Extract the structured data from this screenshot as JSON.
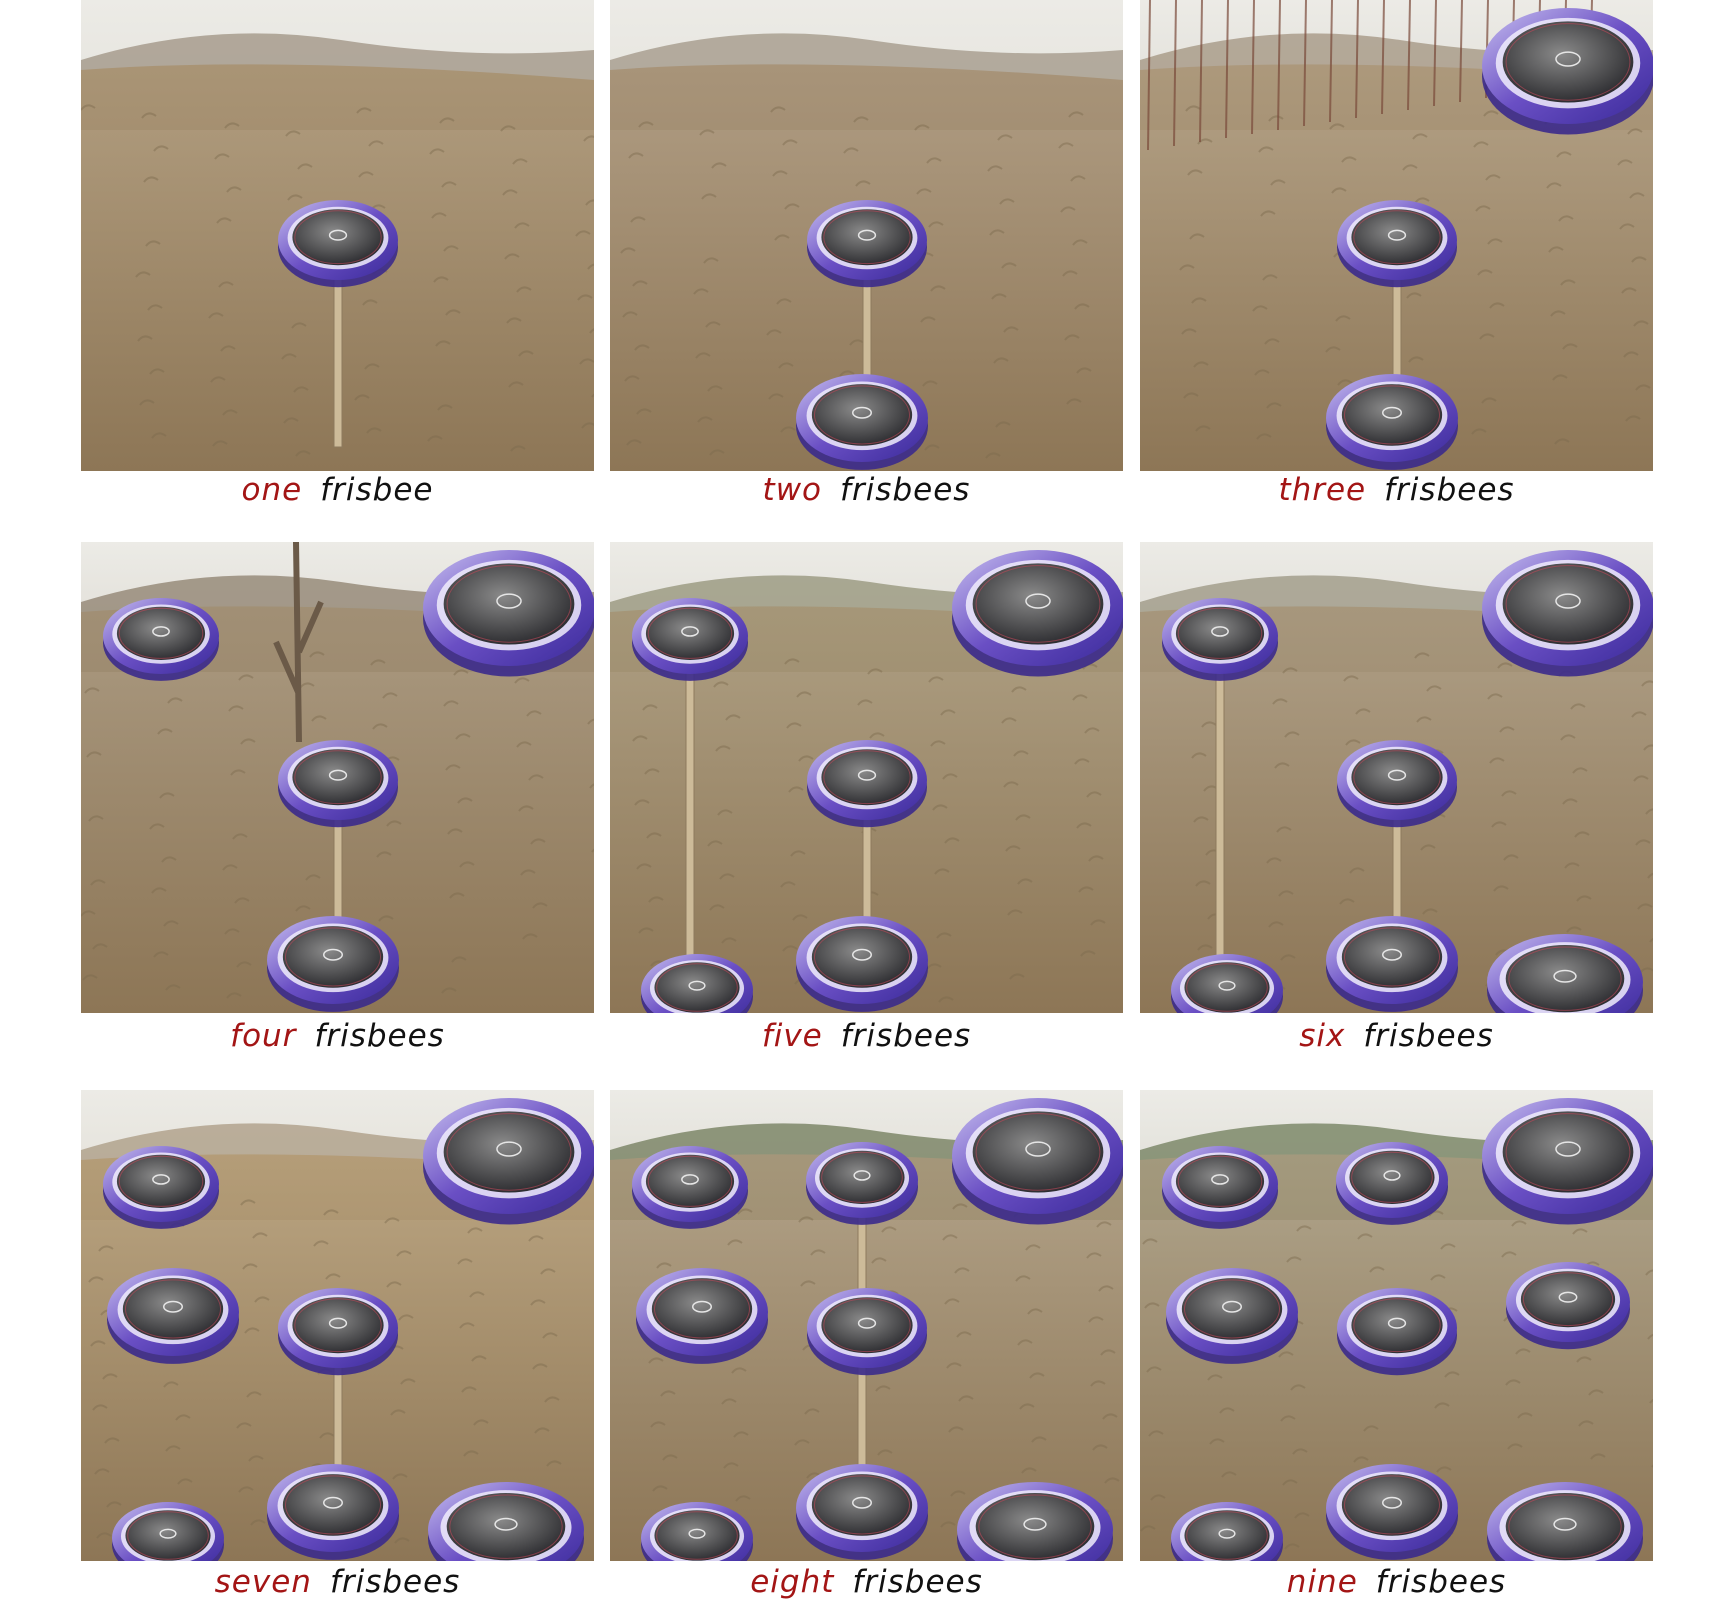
{
  "colors": {
    "number_word": "#a31515",
    "object_word": "#111111"
  },
  "panels": [
    {
      "number": "one",
      "object": "frisbees",
      "object_singular": "frisbee",
      "frisbee_count": 1
    },
    {
      "number": "two",
      "object": "frisbees",
      "frisbee_count": 2
    },
    {
      "number": "three",
      "object": "frisbees",
      "frisbee_count": 3
    },
    {
      "number": "four",
      "object": "frisbees",
      "frisbee_count": 4
    },
    {
      "number": "five",
      "object": "frisbees",
      "frisbee_count": 5
    },
    {
      "number": "six",
      "object": "frisbees",
      "frisbee_count": 6
    },
    {
      "number": "seven",
      "object": "frisbees",
      "frisbee_count": 7
    },
    {
      "number": "eight",
      "object": "frisbees",
      "frisbee_count": 8
    },
    {
      "number": "nine",
      "object": "frisbees",
      "frisbee_count": 9
    }
  ]
}
